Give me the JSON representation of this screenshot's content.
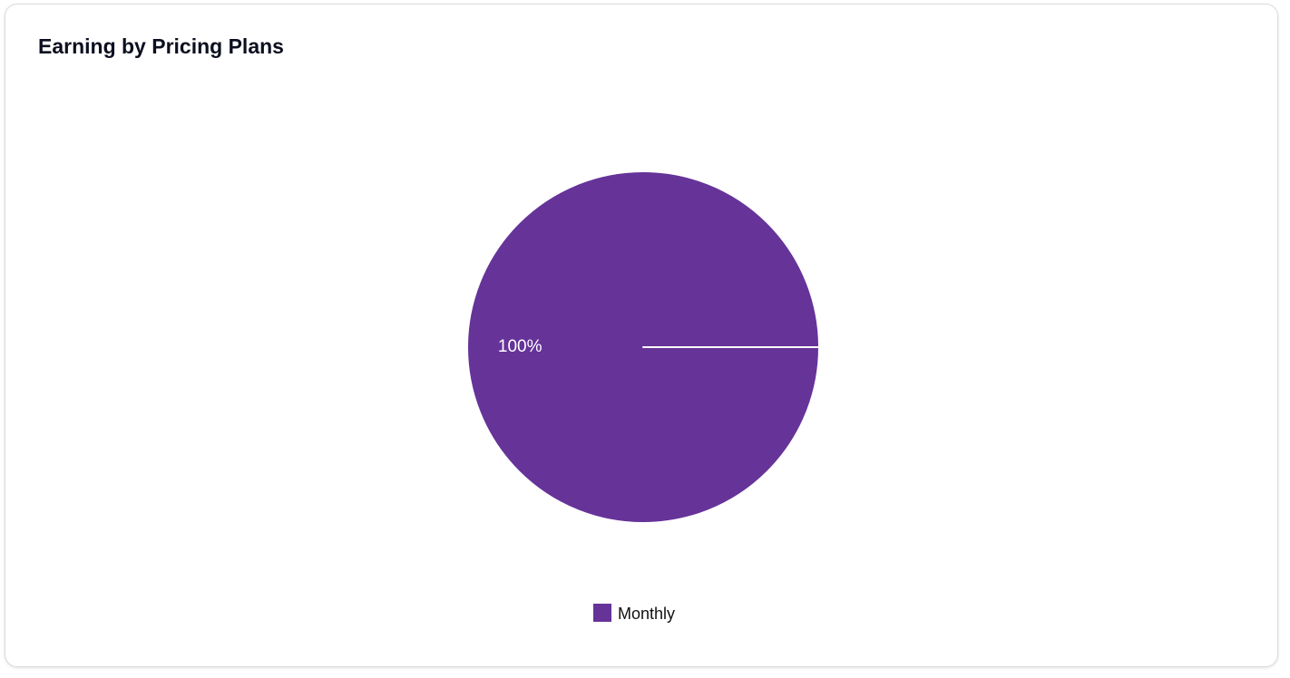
{
  "chart_data": {
    "type": "pie",
    "title": "Earning by Pricing Plans",
    "categories": [
      "Monthly"
    ],
    "values": [
      100
    ],
    "value_labels": [
      "100%"
    ],
    "colors": [
      "#663399"
    ],
    "legend": "bottom"
  }
}
